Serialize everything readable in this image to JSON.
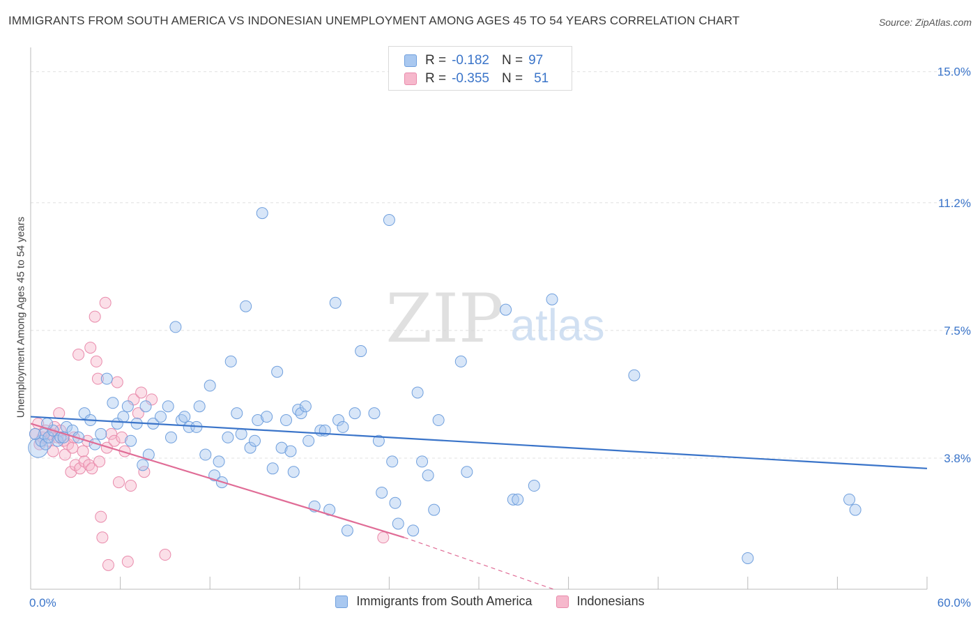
{
  "title": "IMMIGRANTS FROM SOUTH AMERICA VS INDONESIAN UNEMPLOYMENT AMONG AGES 45 TO 54 YEARS CORRELATION CHART",
  "source": "Source: ZipAtlas.com",
  "colors": {
    "blue_fill": "#a9c8f0",
    "blue_stroke": "#6f9fdd",
    "blue_line": "#3a74c9",
    "pink_fill": "#f6b8cc",
    "pink_stroke": "#e98aab",
    "pink_line": "#e06c96",
    "axis_text": "#3a74c9",
    "grid": "#e0e0e0"
  },
  "legend": {
    "rows": [
      {
        "r_label": "R =",
        "r_value": "-0.182",
        "n_label": "N =",
        "n_value": "97"
      },
      {
        "r_label": "R =",
        "r_value": "-0.355",
        "n_label": "N =",
        "n_value": "51"
      }
    ]
  },
  "watermark": {
    "zip": "ZIP",
    "atlas": "atlas"
  },
  "chart_data": {
    "type": "scatter",
    "title": "IMMIGRANTS FROM SOUTH AMERICA VS INDONESIAN UNEMPLOYMENT AMONG AGES 45 TO 54 YEARS CORRELATION CHART",
    "xlabel": "",
    "ylabel": "Unemployment Among Ages 45 to 54 years",
    "xlim": [
      0,
      60
    ],
    "ylim": [
      0,
      15.5
    ],
    "x_tick_labels": [
      "0.0%",
      "60.0%"
    ],
    "y_ticks": [
      3.8,
      7.5,
      11.2,
      15.0
    ],
    "y_tick_labels": [
      "3.8%",
      "7.5%",
      "11.2%",
      "15.0%"
    ],
    "series": [
      {
        "name": "Immigrants from South America",
        "r": -0.182,
        "n": 97,
        "trend": {
          "x": [
            0,
            60
          ],
          "y": [
            5.0,
            3.5
          ]
        },
        "points": [
          [
            0.5,
            4.1
          ],
          [
            0.7,
            4.3
          ],
          [
            0.9,
            4.5
          ],
          [
            1.0,
            4.2
          ],
          [
            1.2,
            4.4
          ],
          [
            1.5,
            4.6
          ],
          [
            1.8,
            4.3
          ],
          [
            2.0,
            4.4
          ],
          [
            2.4,
            4.7
          ],
          [
            2.8,
            4.6
          ],
          [
            3.2,
            4.4
          ],
          [
            3.6,
            5.1
          ],
          [
            4.0,
            4.9
          ],
          [
            4.3,
            4.2
          ],
          [
            4.7,
            4.5
          ],
          [
            5.1,
            6.1
          ],
          [
            5.5,
            5.4
          ],
          [
            5.8,
            4.8
          ],
          [
            6.2,
            5.0
          ],
          [
            6.5,
            5.3
          ],
          [
            6.7,
            4.3
          ],
          [
            7.1,
            4.8
          ],
          [
            7.5,
            3.6
          ],
          [
            7.7,
            5.3
          ],
          [
            7.9,
            3.9
          ],
          [
            8.2,
            4.8
          ],
          [
            8.7,
            5.0
          ],
          [
            9.2,
            5.3
          ],
          [
            9.4,
            4.4
          ],
          [
            9.7,
            7.6
          ],
          [
            10.1,
            4.9
          ],
          [
            10.3,
            5.0
          ],
          [
            10.6,
            4.7
          ],
          [
            11.1,
            4.7
          ],
          [
            11.3,
            5.3
          ],
          [
            11.7,
            3.9
          ],
          [
            12.0,
            5.9
          ],
          [
            12.3,
            3.3
          ],
          [
            12.6,
            3.7
          ],
          [
            12.8,
            3.1
          ],
          [
            13.2,
            4.4
          ],
          [
            13.4,
            6.6
          ],
          [
            13.8,
            5.1
          ],
          [
            14.1,
            4.5
          ],
          [
            14.4,
            8.2
          ],
          [
            14.7,
            4.1
          ],
          [
            15.0,
            4.3
          ],
          [
            15.2,
            4.9
          ],
          [
            15.5,
            10.9
          ],
          [
            15.8,
            5.0
          ],
          [
            16.2,
            3.5
          ],
          [
            16.5,
            6.3
          ],
          [
            16.8,
            4.1
          ],
          [
            17.1,
            4.9
          ],
          [
            17.4,
            4.0
          ],
          [
            17.6,
            3.4
          ],
          [
            17.9,
            5.2
          ],
          [
            18.1,
            5.1
          ],
          [
            18.4,
            5.3
          ],
          [
            18.6,
            4.3
          ],
          [
            19.0,
            2.4
          ],
          [
            19.4,
            4.6
          ],
          [
            19.7,
            4.6
          ],
          [
            20.0,
            2.3
          ],
          [
            20.4,
            8.3
          ],
          [
            20.6,
            4.9
          ],
          [
            20.9,
            4.7
          ],
          [
            21.2,
            1.7
          ],
          [
            21.7,
            5.1
          ],
          [
            22.1,
            6.9
          ],
          [
            23.0,
            5.1
          ],
          [
            23.3,
            4.3
          ],
          [
            23.5,
            2.8
          ],
          [
            24.0,
            10.7
          ],
          [
            24.2,
            3.7
          ],
          [
            24.4,
            2.5
          ],
          [
            24.6,
            1.9
          ],
          [
            25.6,
            1.7
          ],
          [
            25.9,
            5.7
          ],
          [
            26.2,
            3.7
          ],
          [
            26.6,
            3.3
          ],
          [
            27.0,
            2.3
          ],
          [
            27.3,
            4.9
          ],
          [
            28.8,
            6.6
          ],
          [
            29.2,
            3.4
          ],
          [
            31.8,
            8.1
          ],
          [
            32.3,
            2.6
          ],
          [
            32.6,
            2.6
          ],
          [
            33.7,
            3.0
          ],
          [
            34.9,
            8.4
          ],
          [
            40.4,
            6.2
          ],
          [
            48.0,
            0.9
          ],
          [
            54.8,
            2.6
          ],
          [
            55.2,
            2.3
          ],
          [
            0.3,
            4.5
          ],
          [
            1.1,
            4.8
          ],
          [
            2.2,
            4.4
          ]
        ]
      },
      {
        "name": "Indonesians",
        "r": -0.355,
        "n": 51,
        "trend": {
          "x": [
            0,
            25
          ],
          "y": [
            4.8,
            1.5
          ]
        },
        "trend_dashed": {
          "x": [
            25,
            35
          ],
          "y": [
            1.5,
            0.0
          ]
        },
        "points": [
          [
            0.3,
            4.5
          ],
          [
            0.5,
            4.8
          ],
          [
            0.6,
            4.2
          ],
          [
            0.8,
            4.4
          ],
          [
            1.0,
            4.6
          ],
          [
            1.2,
            4.3
          ],
          [
            1.4,
            4.5
          ],
          [
            1.5,
            4.0
          ],
          [
            1.6,
            4.7
          ],
          [
            1.8,
            4.4
          ],
          [
            1.9,
            5.1
          ],
          [
            2.0,
            4.6
          ],
          [
            2.2,
            4.3
          ],
          [
            2.3,
            3.9
          ],
          [
            2.5,
            4.2
          ],
          [
            2.7,
            3.4
          ],
          [
            2.8,
            4.1
          ],
          [
            2.9,
            4.4
          ],
          [
            3.0,
            3.6
          ],
          [
            3.2,
            6.8
          ],
          [
            3.3,
            3.5
          ],
          [
            3.5,
            4.0
          ],
          [
            3.6,
            3.7
          ],
          [
            3.8,
            4.3
          ],
          [
            3.9,
            3.6
          ],
          [
            4.0,
            7.0
          ],
          [
            4.1,
            3.5
          ],
          [
            4.3,
            7.9
          ],
          [
            4.4,
            6.6
          ],
          [
            4.5,
            6.1
          ],
          [
            4.6,
            3.7
          ],
          [
            4.7,
            2.1
          ],
          [
            4.8,
            1.5
          ],
          [
            5.0,
            8.3
          ],
          [
            5.1,
            4.1
          ],
          [
            5.2,
            0.7
          ],
          [
            5.4,
            4.5
          ],
          [
            5.6,
            4.3
          ],
          [
            5.8,
            6.0
          ],
          [
            5.9,
            3.1
          ],
          [
            6.1,
            4.4
          ],
          [
            6.3,
            4.0
          ],
          [
            6.5,
            0.8
          ],
          [
            6.7,
            3.0
          ],
          [
            6.9,
            5.5
          ],
          [
            7.2,
            5.1
          ],
          [
            7.4,
            5.7
          ],
          [
            7.6,
            3.4
          ],
          [
            8.1,
            5.5
          ],
          [
            9.0,
            1.0
          ],
          [
            23.6,
            1.5
          ]
        ]
      }
    ]
  },
  "bottom_legend": [
    {
      "label": "Immigrants from South America"
    },
    {
      "label": "Indonesians"
    }
  ]
}
